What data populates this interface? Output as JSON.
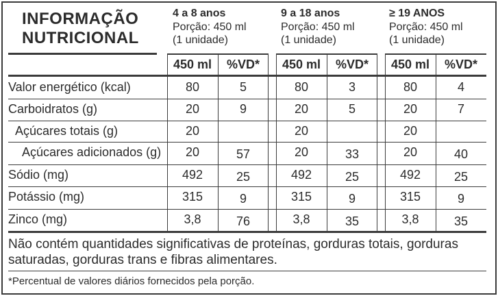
{
  "title": {
    "line1": "INFORMAÇÃO",
    "line2": "NUTRICIONAL"
  },
  "groups": [
    {
      "name": "4 a 8 anos",
      "portion": "Porção: 450 ml",
      "unit": "(1 unidade)"
    },
    {
      "name": "9 a 18 anos",
      "portion": "Porção: 450 ml",
      "unit": "(1 unidade)"
    },
    {
      "name": "≥ 19 ANOS",
      "portion": "Porção: 450 ml",
      "unit": "(1 unidade)"
    }
  ],
  "column_headers": [
    "450 ml",
    "%VD*",
    "450 ml",
    "%VD*",
    "450 ml",
    "%VD*"
  ],
  "rows": [
    {
      "label": "Valor energético (kcal)",
      "values": [
        "80",
        "5",
        "80",
        "3",
        "80",
        "4"
      ]
    },
    {
      "label": "Carboidratos (g)",
      "values": [
        "20",
        "9",
        "20",
        "5",
        "20",
        "7"
      ]
    },
    {
      "label": "Açúcares totais (g)",
      "values": [
        "20",
        "",
        "20",
        "",
        "20",
        ""
      ]
    },
    {
      "label": "Açúcares adicionados (g)",
      "values": [
        "20",
        "57",
        "20",
        "33",
        "20",
        "40"
      ]
    },
    {
      "label": "Sódio (mg)",
      "values": [
        "492",
        "25",
        "492",
        "25",
        "492",
        "25"
      ]
    },
    {
      "label": "Potássio (mg)",
      "values": [
        "315",
        "9",
        "315",
        "9",
        "315",
        "9"
      ]
    },
    {
      "label": "Zinco (mg)",
      "values": [
        "3,8",
        "76",
        "3,8",
        "35",
        "3,8",
        "35"
      ]
    }
  ],
  "footnote_main": "Não contém quantidades significativas de proteínas, gorduras totais, gorduras saturadas, gorduras trans e fibras alimentares.",
  "footnote_small": "*Percentual de valores diários fornecidos pela porção."
}
